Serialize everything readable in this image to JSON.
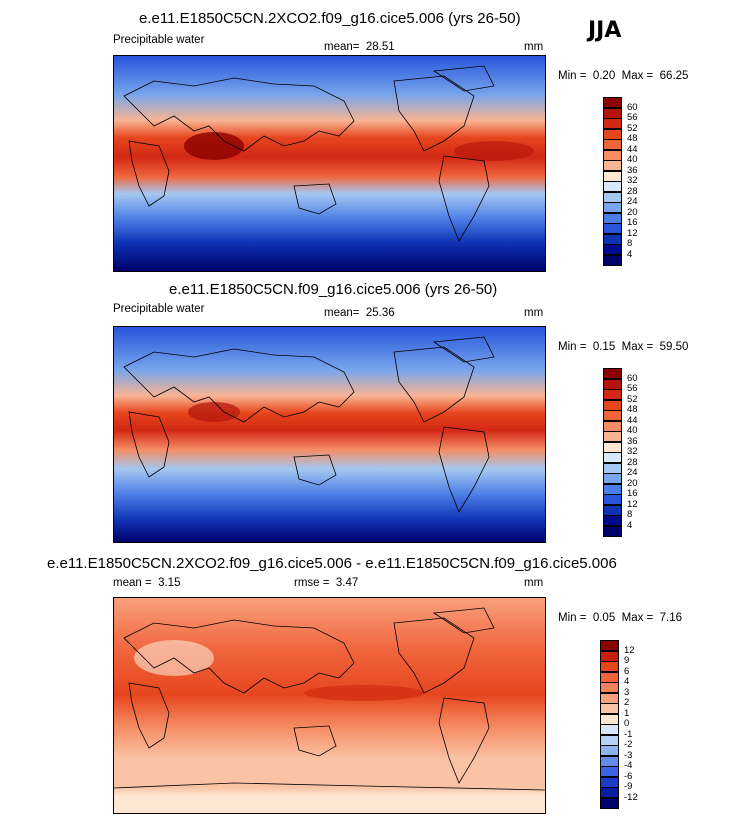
{
  "season": "JJA",
  "panels": [
    {
      "id": "co2",
      "title": "e.e11.E1850C5CN.2XCO2.f09_g16.cice5.006 (yrs 26-50)",
      "left_label": "Precipitable water",
      "stat_label": "mean=",
      "stat_value": "28.51",
      "units": "mm",
      "min_label": "Min =",
      "min_value": "0.20",
      "max_label": "Max =",
      "max_value": "66.25",
      "colorbar": {
        "labels": [
          "60",
          "56",
          "52",
          "48",
          "44",
          "40",
          "36",
          "32",
          "28",
          "24",
          "20",
          "16",
          "12",
          "8",
          "4"
        ],
        "colors": [
          "#8b0000",
          "#b4140c",
          "#d22814",
          "#e6461e",
          "#f0643c",
          "#f58c64",
          "#f8b493",
          "#fde6d2",
          "#d9e8f7",
          "#a5c8f0",
          "#78a5eb",
          "#4b7de6",
          "#2855dc",
          "#0f32b4",
          "#000a8c",
          "#00006a"
        ]
      }
    },
    {
      "id": "ctrl",
      "title": "e.e11.E1850C5CN.f09_g16.cice5.006 (yrs 26-50)",
      "left_label": "Precipitable water",
      "stat_label": "mean=",
      "stat_value": "25.36",
      "units": "mm",
      "min_label": "Min =",
      "min_value": "0.15",
      "max_label": "Max =",
      "max_value": "59.50",
      "colorbar": {
        "labels": [
          "60",
          "56",
          "52",
          "48",
          "44",
          "40",
          "36",
          "32",
          "28",
          "24",
          "20",
          "16",
          "12",
          "8",
          "4"
        ],
        "colors": [
          "#8b0000",
          "#b4140c",
          "#d22814",
          "#e6461e",
          "#f0643c",
          "#f58c64",
          "#f8b493",
          "#fde6d2",
          "#d9e8f7",
          "#a5c8f0",
          "#78a5eb",
          "#4b7de6",
          "#2855dc",
          "#0f32b4",
          "#000a8c",
          "#00006a"
        ]
      }
    },
    {
      "id": "diff",
      "title": "e.e11.E1850C5CN.2XCO2.f09_g16.cice5.006 - e.e11.E1850C5CN.f09_g16.cice5.006",
      "left_label": "mean =",
      "left_value": "3.15",
      "stat_label": "rmse =",
      "stat_value": "3.47",
      "units": "mm",
      "min_label": "Min =",
      "min_value": "0.05",
      "max_label": "Max =",
      "max_value": "7.16",
      "colorbar": {
        "labels": [
          "12",
          "9",
          "6",
          "4",
          "3",
          "2",
          "1",
          "0",
          "-1",
          "-2",
          "-3",
          "-4",
          "-6",
          "-9",
          "-12"
        ],
        "colors": [
          "#8b0000",
          "#c81e0a",
          "#e6461e",
          "#f0643c",
          "#f5825a",
          "#f8a07d",
          "#fbc3a5",
          "#fde6d2",
          "#d9e8f7",
          "#b4d2f5",
          "#8cb4f0",
          "#648cea",
          "#3c64e1",
          "#1e3cc8",
          "#0a1ea0",
          "#00006a"
        ]
      }
    }
  ]
}
